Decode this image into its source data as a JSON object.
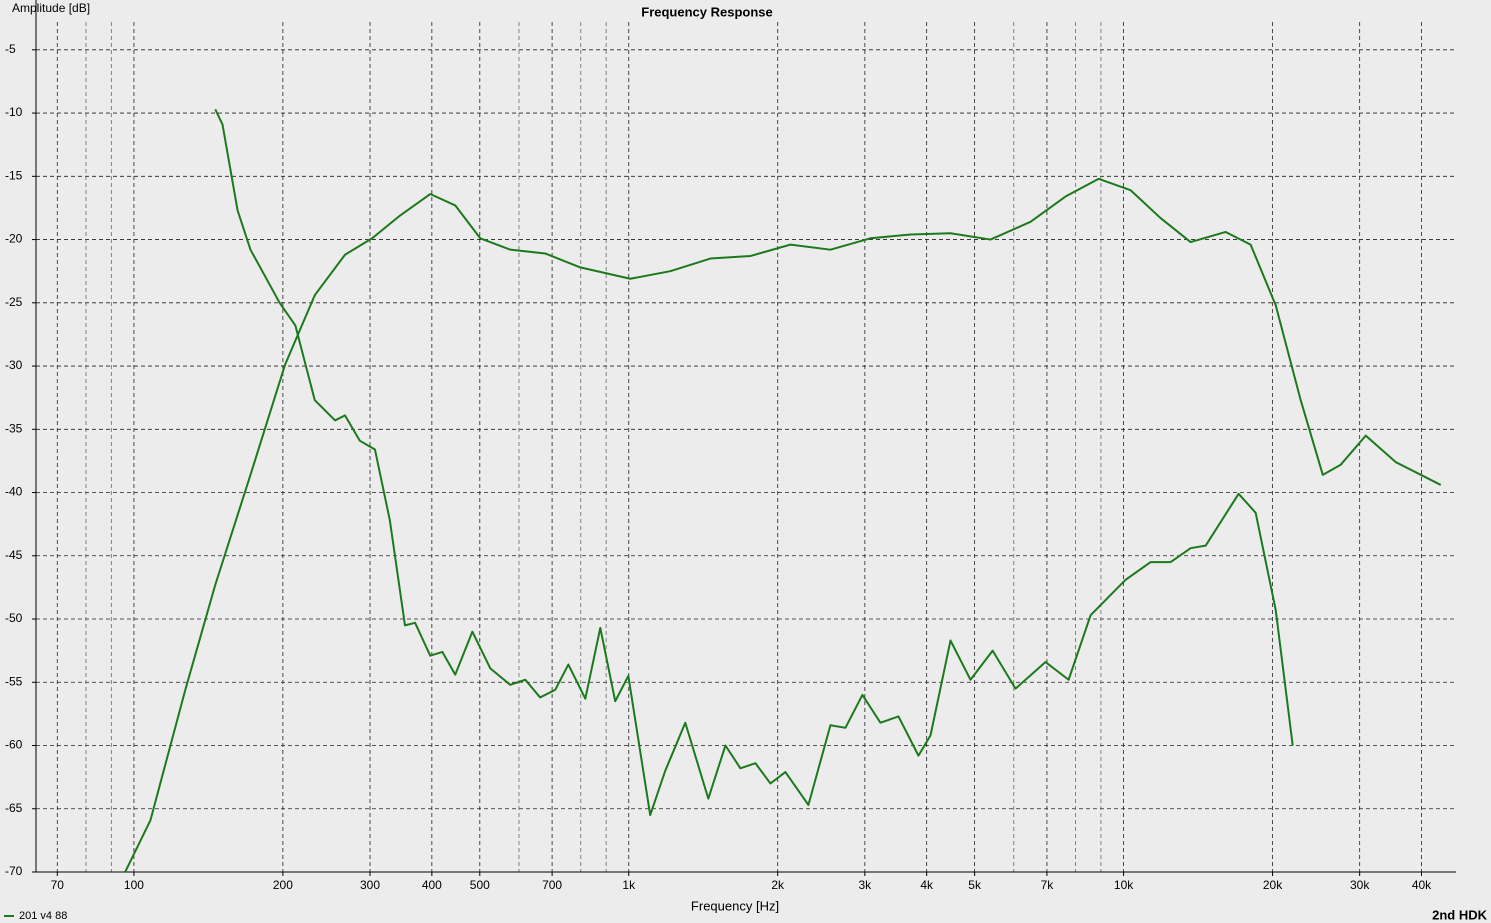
{
  "chart_data": {
    "type": "line",
    "title": "Frequency Response",
    "y_label": "Amplitude [dB]",
    "x_label": "Frequency [Hz]",
    "annotation": "2nd HDK",
    "x_scale": "log",
    "grid": true,
    "legend_position": "bottom-left",
    "xlim": [
      63.4,
      43800
    ],
    "ylim": [
      -70,
      -2.8
    ],
    "xticks": [
      70,
      100,
      200,
      300,
      400,
      500,
      700,
      {
        "value": 1000,
        "label": "1k"
      },
      {
        "value": 2000,
        "label": "2k"
      },
      {
        "value": 3000,
        "label": "3k"
      },
      {
        "value": 4000,
        "label": "4k"
      },
      {
        "value": 5000,
        "label": "5k"
      },
      {
        "value": 7000,
        "label": "7k"
      },
      {
        "value": 10000,
        "label": "10k"
      },
      {
        "value": 20000,
        "label": "20k"
      },
      {
        "value": 30000,
        "label": "30k"
      },
      {
        "value": 40000,
        "label": "40k"
      }
    ],
    "xminor": [
      80,
      90,
      600,
      800,
      900,
      6000,
      8000,
      9000
    ],
    "yticks": [
      -5,
      -10,
      -15,
      -20,
      -25,
      -30,
      -35,
      -40,
      -45,
      -50,
      -55,
      -60,
      -65,
      -70
    ],
    "series": [
      {
        "name": "201 v4 88",
        "color": "#1b7a1b",
        "x": [
          96,
          108,
          127,
          146,
          172,
          202,
          232,
          267,
          303,
          345,
          397,
          446,
          501,
          576,
          678,
          798,
          1007,
          1213,
          1462,
          1761,
          2122,
          2556,
          3079,
          3710,
          4469,
          5383,
          6485,
          7632,
          8900,
          10332,
          11878,
          13660,
          16080,
          18060,
          20300,
          22800,
          25270,
          27470,
          30860,
          35490,
          43750
        ],
        "values": [
          -70,
          -65.9,
          -55.6,
          -47.3,
          -38.6,
          -29.9,
          -24.4,
          -21.2,
          -19.9,
          -18.1,
          -16.4,
          -17.3,
          -19.9,
          -20.8,
          -21.1,
          -22.2,
          -23.1,
          -22.5,
          -21.5,
          -21.3,
          -20.4,
          -20.8,
          -19.9,
          -19.6,
          -19.5,
          -20.0,
          -18.6,
          -16.6,
          -15.2,
          -16.1,
          -18.3,
          -20.2,
          -19.4,
          -20.4,
          -25.2,
          -32.7,
          -38.6,
          -37.8,
          -35.5,
          -37.6,
          -39.4
        ]
      },
      {
        "color": "#1b7a1b",
        "x": [
          146,
          151,
          162,
          172,
          197,
          212,
          232,
          255,
          267,
          286,
          307,
          329,
          353,
          370,
          397,
          420,
          446,
          483,
          525,
          576,
          618,
          662,
          710,
          755,
          817,
          876,
          939,
          998,
          1105,
          1185,
          1301,
          1448,
          1568,
          1681,
          1803,
          1933,
          2073,
          2307,
          2556,
          2741,
          2966,
          3226,
          3508,
          3850,
          4072,
          4469,
          4905,
          5437,
          6048,
          6954,
          7743,
          8578,
          10092,
          11340,
          12450,
          13660,
          14650,
          17080,
          18490,
          20300,
          21970
        ],
        "values": [
          -9.7,
          -10.9,
          -17.7,
          -20.8,
          -25.0,
          -26.8,
          -32.7,
          -34.3,
          -33.9,
          -35.9,
          -36.6,
          -42.2,
          -50.5,
          -50.3,
          -52.9,
          -52.6,
          -54.4,
          -51.0,
          -53.9,
          -55.2,
          -54.8,
          -56.2,
          -55.6,
          -53.6,
          -56.3,
          -50.7,
          -56.5,
          -54.5,
          -65.5,
          -62.0,
          -58.2,
          -64.2,
          -60.0,
          -61.8,
          -61.4,
          -63.0,
          -62.1,
          -64.7,
          -58.4,
          -58.6,
          -56.0,
          -58.2,
          -57.7,
          -60.8,
          -59.2,
          -51.7,
          -54.8,
          -52.5,
          -55.5,
          -53.4,
          -54.8,
          -49.7,
          -46.9,
          -45.5,
          -45.5,
          -44.4,
          -44.2,
          -40.1,
          -41.6,
          -49.3,
          -60.0
        ]
      }
    ]
  }
}
